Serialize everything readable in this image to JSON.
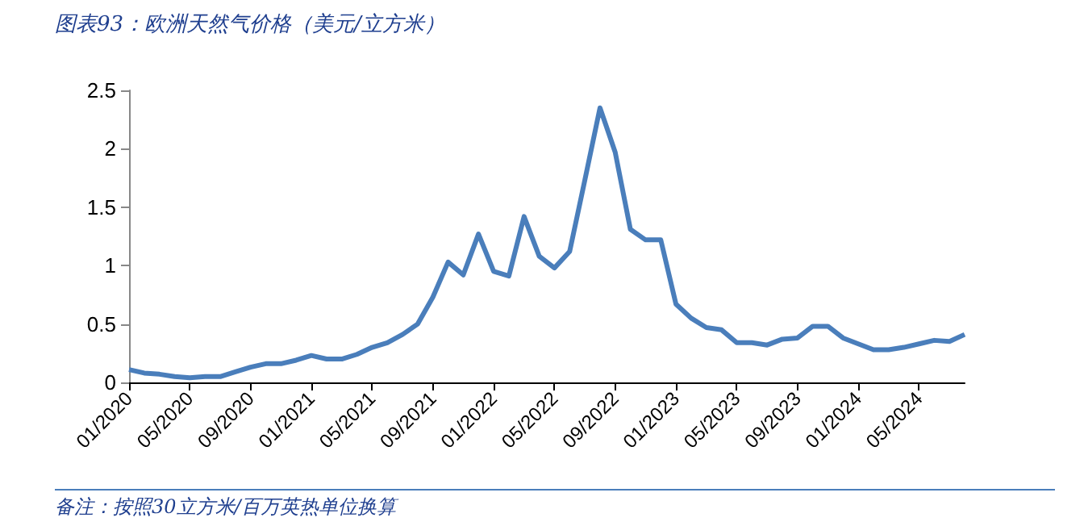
{
  "chart_data": {
    "type": "line",
    "title": "图表93：欧洲天然气价格（美元/立方米）",
    "annotations": [
      "备注：按照30立方米/百万英热单位换算"
    ],
    "categories": [
      "01/2020",
      null,
      null,
      null,
      "05/2020",
      null,
      null,
      null,
      "09/2020",
      null,
      null,
      null,
      "01/2021",
      null,
      null,
      null,
      "05/2021",
      null,
      null,
      null,
      "09/2021",
      null,
      null,
      null,
      "01/2022",
      null,
      null,
      null,
      "05/2022",
      null,
      null,
      null,
      "09/2022",
      null,
      null,
      null,
      "01/2023",
      null,
      null,
      null,
      "05/2023",
      null,
      null,
      null,
      "09/2023",
      null,
      null,
      null,
      "01/2024",
      null,
      null,
      null,
      "05/2024",
      null,
      null,
      null
    ],
    "series": [
      {
        "color": "#4a7ebb",
        "values": [
          0.11,
          0.08,
          0.07,
          0.05,
          0.04,
          0.05,
          0.05,
          0.09,
          0.13,
          0.16,
          0.16,
          0.19,
          0.23,
          0.2,
          0.2,
          0.24,
          0.3,
          0.34,
          0.41,
          0.5,
          0.73,
          1.03,
          0.92,
          1.27,
          0.95,
          0.91,
          1.42,
          1.08,
          0.98,
          1.12,
          1.73,
          2.35,
          1.97,
          1.31,
          1.22,
          1.22,
          0.67,
          0.55,
          0.47,
          0.45,
          0.34,
          0.34,
          0.32,
          0.37,
          0.38,
          0.48,
          0.48,
          0.38,
          0.33,
          0.28,
          0.28,
          0.3,
          0.33,
          0.36,
          0.35,
          0.41
        ]
      }
    ],
    "ylim": [
      0,
      2.5
    ],
    "yticks": [
      0,
      0.5,
      1,
      1.5,
      2,
      2.5
    ],
    "grid": false,
    "marker": "none",
    "line_style": "solid"
  }
}
